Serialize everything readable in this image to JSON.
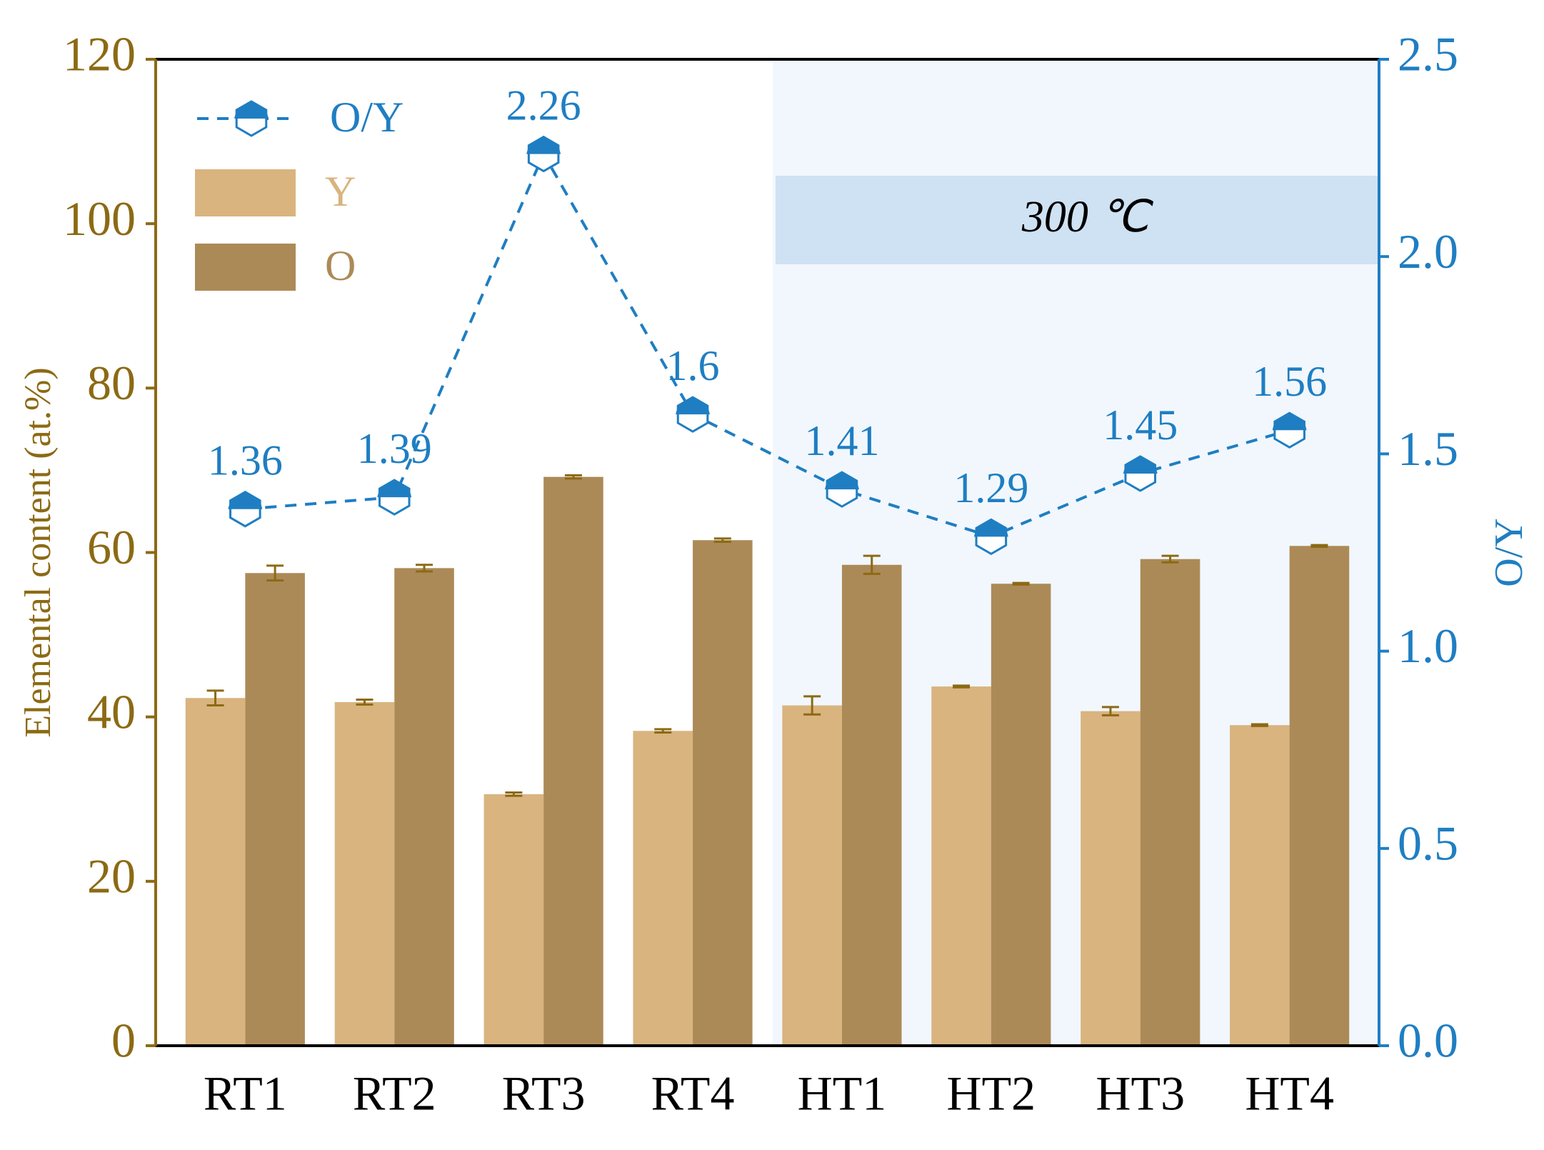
{
  "chart_data": {
    "type": "bar",
    "categories": [
      "RT1",
      "RT2",
      "RT3",
      "RT4",
      "HT1",
      "HT2",
      "HT3",
      "HT4"
    ],
    "series": [
      {
        "name": "Y",
        "color": "#d9b47f",
        "values": [
          42.3,
          41.8,
          30.6,
          38.3,
          41.4,
          43.7,
          40.7,
          39.0
        ],
        "errors": [
          0.9,
          0.3,
          0.2,
          0.2,
          1.1,
          0.1,
          0.5,
          0.1
        ]
      },
      {
        "name": "O",
        "color": "#ac8a57",
        "values": [
          57.5,
          58.1,
          69.2,
          61.5,
          58.5,
          56.2,
          59.2,
          60.8
        ],
        "errors": [
          0.9,
          0.4,
          0.2,
          0.2,
          1.1,
          0.1,
          0.4,
          0.1
        ]
      },
      {
        "name": "O/Y",
        "type": "line",
        "axis": "y2",
        "color": "#1f7ec2",
        "values": [
          1.36,
          1.39,
          2.26,
          1.6,
          1.41,
          1.29,
          1.45,
          1.56
        ]
      }
    ],
    "ylabel": "Elemental content (at.%)",
    "y2label": "O/Y",
    "ylim": [
      0,
      120
    ],
    "yticks": [
      0,
      20,
      40,
      60,
      80,
      100,
      120
    ],
    "y2lim": [
      0,
      2.5
    ],
    "y2ticks": [
      {
        "value": 0,
        "label": "0.0"
      },
      {
        "value": 0.5,
        "label": "0.5"
      },
      {
        "value": 1,
        "label": "1.0"
      },
      {
        "value": 1.5,
        "label": "1.5"
      },
      {
        "value": 2,
        "label": "2.0"
      },
      {
        "value": 2.5,
        "label": "2.5"
      }
    ],
    "annotation": "300 ℃",
    "legend": "upper left",
    "left_axis_color": "#8c6a14"
  }
}
